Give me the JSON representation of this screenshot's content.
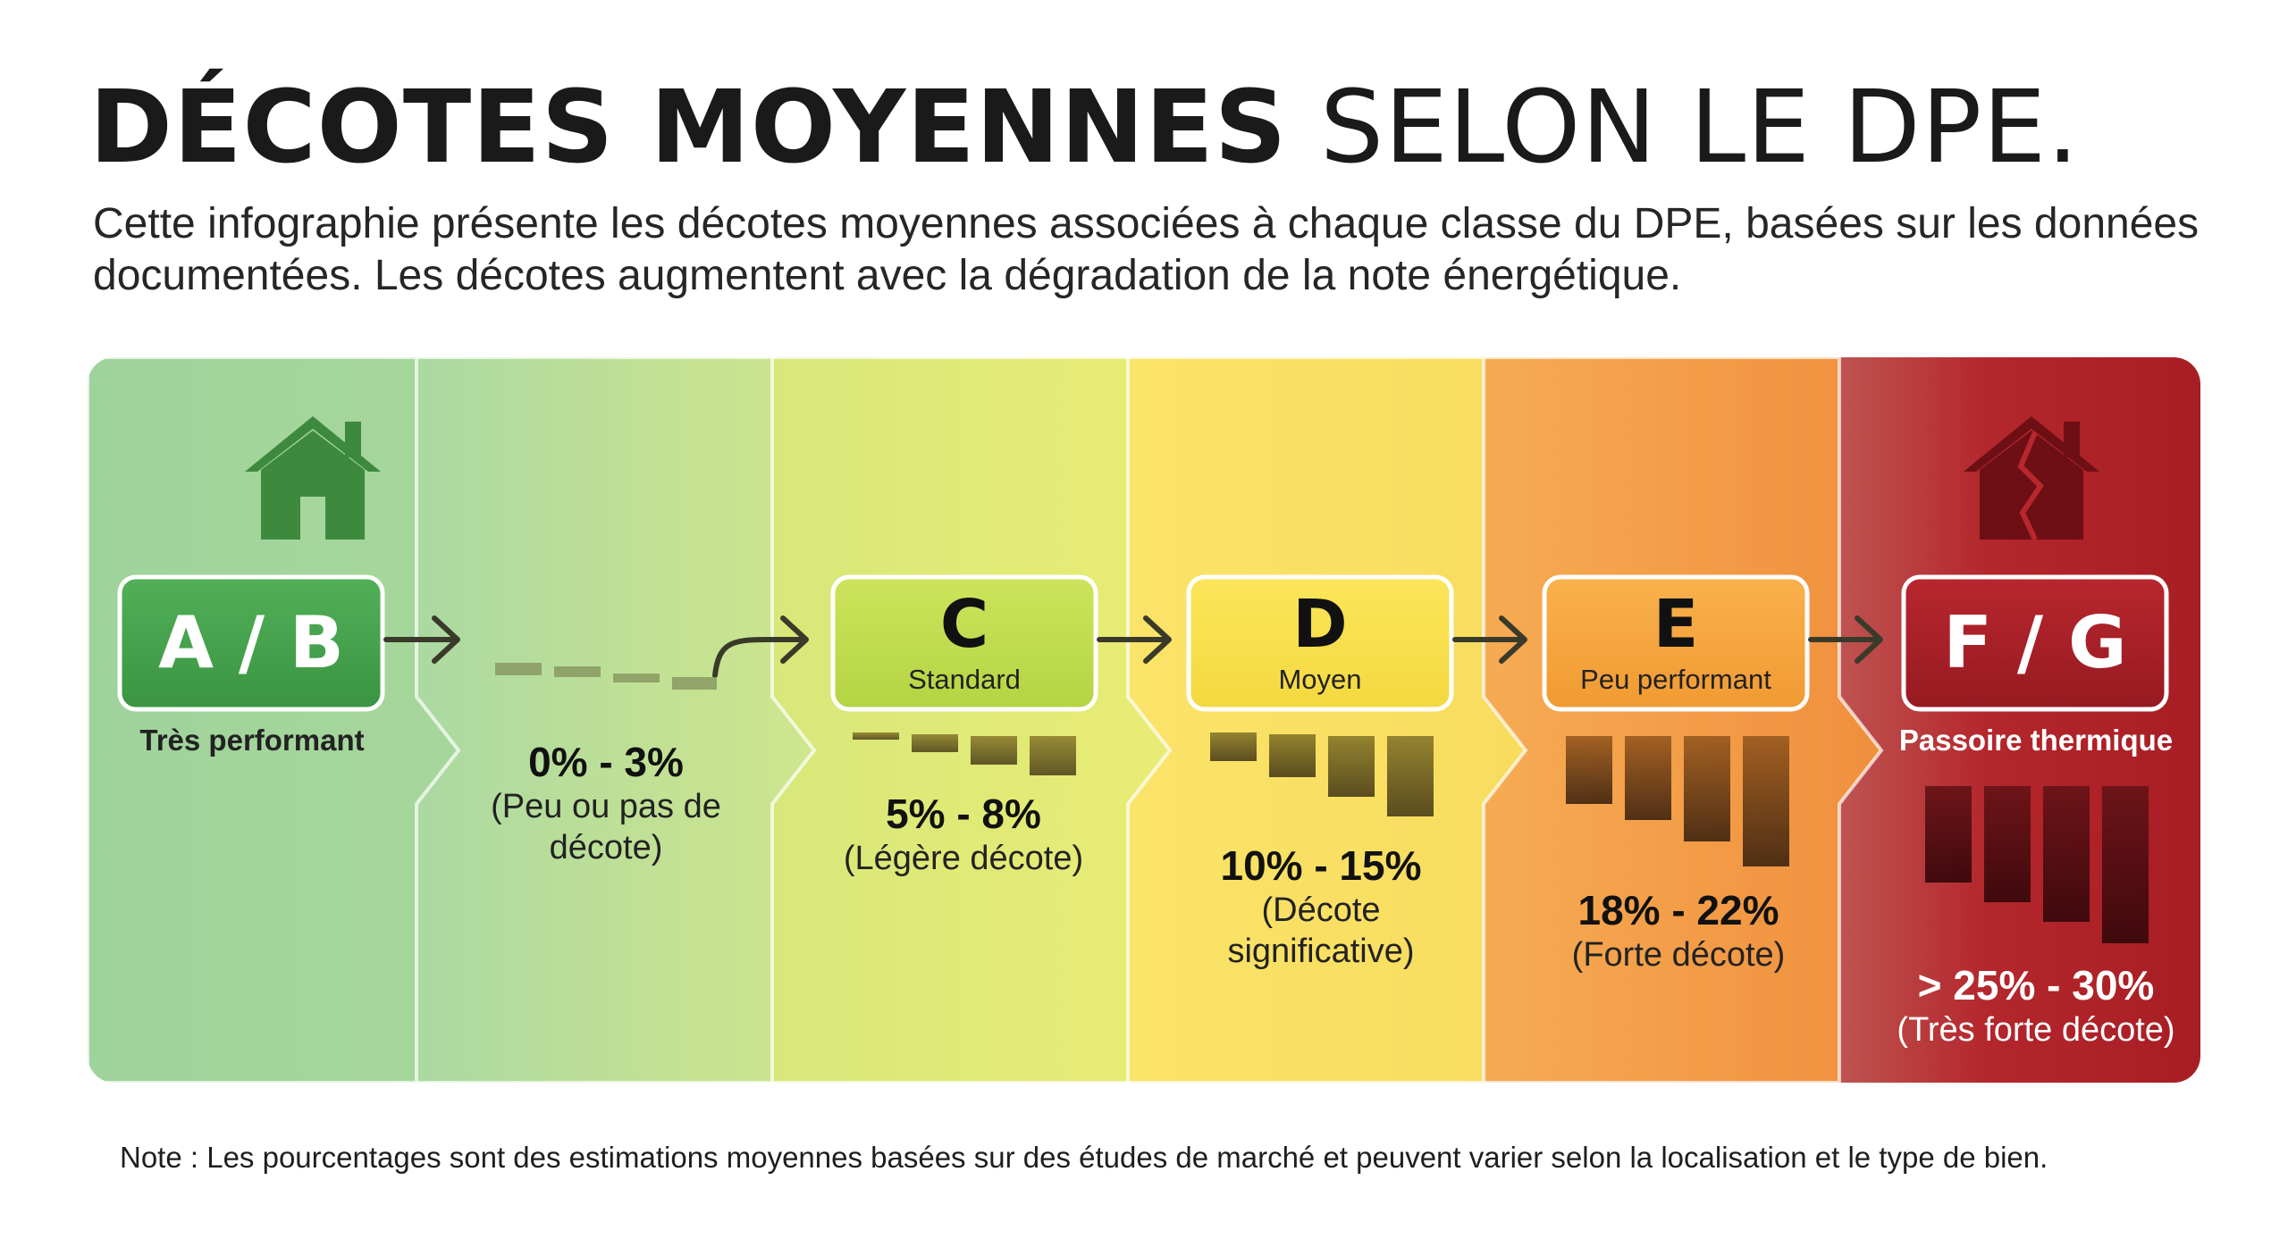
{
  "header": {
    "title_bold": "DÉCOTES MOYENNES",
    "title_light": "SELON LE DPE.",
    "subtitle": "Cette infographie présente les décotes moyennes associées à chaque classe du DPE, basées sur les données documentées. Les décotes augmentent avec la dégradation de la note énergétique."
  },
  "classes": {
    "ab": {
      "label": "A / B",
      "caption": "Très performant",
      "icon": "house-icon",
      "color": "#3f9e4a"
    },
    "c": {
      "label": "C",
      "caption": "Standard",
      "color": "#b7d84a"
    },
    "d": {
      "label": "D",
      "caption": "Moyen",
      "color": "#f6dc48"
    },
    "e": {
      "label": "E",
      "caption": "Peu performant",
      "color": "#f0a23c"
    },
    "fg": {
      "label": "F / G",
      "caption": "Passoire thermique",
      "icon": "broken-house-icon",
      "color": "#a51d24"
    }
  },
  "discounts": {
    "ab": {
      "range": "0% - 3%",
      "description": "(Peu ou pas de décote)"
    },
    "c": {
      "range": "5% - 8%",
      "description": "(Légère décote)"
    },
    "d": {
      "range": "10% - 15%",
      "description": "(Décote significative)"
    },
    "e": {
      "range": "18% - 22%",
      "description": "(Forte décote)"
    },
    "fg": {
      "range": "> 25% - 30%",
      "description": "(Très forte décote)"
    }
  },
  "note": "Note : Les pourcentages sont des estimations moyennes basées sur des études de marché et peuvent varier selon la localisation et le type de bien."
}
